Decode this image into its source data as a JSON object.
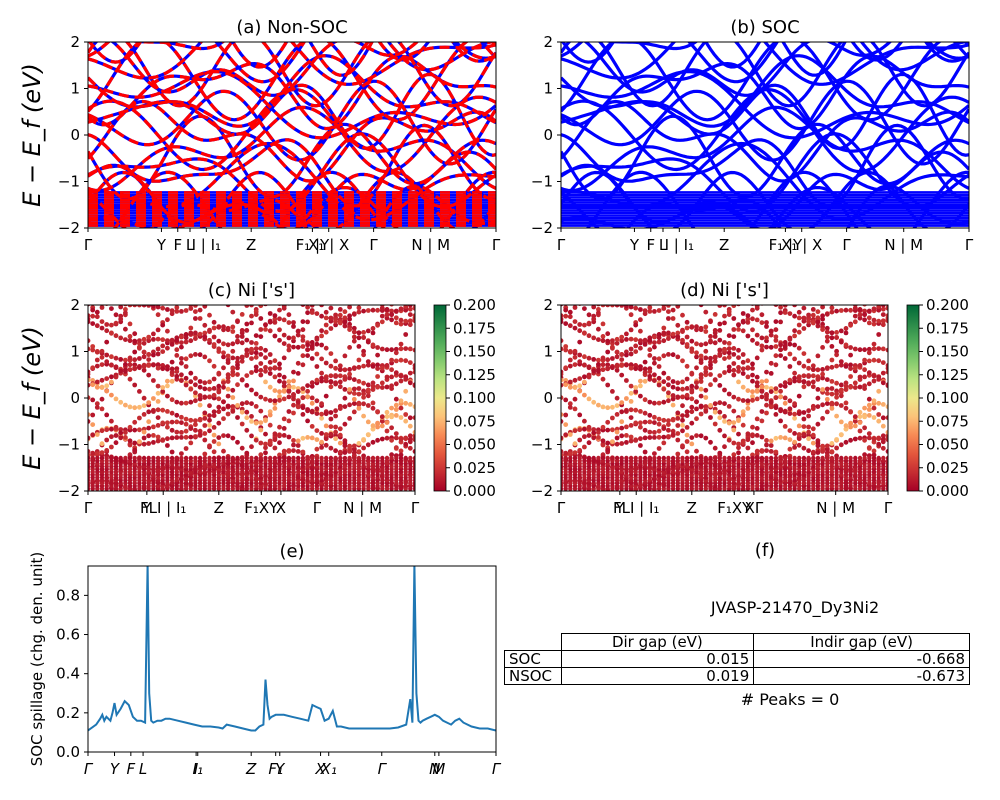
{
  "chart_data": [
    {
      "id": "a",
      "type": "line",
      "title": "(a) Non-SOC",
      "ylabel": "E − E_f (eV)",
      "ylim": [
        -2,
        2
      ],
      "yticks": [
        -2,
        -1,
        0,
        1,
        2
      ],
      "xticks": [
        {
          "pos": 0.0,
          "label": "Γ"
        },
        {
          "pos": 0.18,
          "label": "Y"
        },
        {
          "pos": 0.22,
          "label": "F"
        },
        {
          "pos": 0.25,
          "label": "L"
        },
        {
          "pos": 0.29,
          "label": "I | I₁"
        },
        {
          "pos": 0.4,
          "label": "Z"
        },
        {
          "pos": 0.55,
          "label": "F₁ |Y"
        },
        {
          "pos": 0.59,
          "label": "X₁ | X"
        },
        {
          "pos": 0.7,
          "label": "Γ"
        },
        {
          "pos": 0.84,
          "label": "N | M"
        },
        {
          "pos": 1.0,
          "label": "Γ"
        }
      ],
      "series": [
        {
          "color": "#0000ff",
          "style": "solid"
        },
        {
          "color": "#ff0000",
          "style": "dashed"
        }
      ]
    },
    {
      "id": "b",
      "type": "line",
      "title": "(b) SOC",
      "ylim": [
        -2,
        2
      ],
      "yticks": [
        -2,
        -1,
        0,
        1,
        2
      ],
      "xticks": [
        {
          "pos": 0.0,
          "label": "Γ"
        },
        {
          "pos": 0.18,
          "label": "Y"
        },
        {
          "pos": 0.22,
          "label": "F"
        },
        {
          "pos": 0.25,
          "label": "L"
        },
        {
          "pos": 0.29,
          "label": "I | I₁"
        },
        {
          "pos": 0.4,
          "label": "Z"
        },
        {
          "pos": 0.55,
          "label": "F₁ |Y"
        },
        {
          "pos": 0.59,
          "label": "X₁ | X"
        },
        {
          "pos": 0.7,
          "label": "Γ"
        },
        {
          "pos": 0.84,
          "label": "N | M"
        },
        {
          "pos": 1.0,
          "label": "Γ"
        }
      ],
      "series": [
        {
          "color": "#0000ff",
          "style": "solid"
        }
      ]
    },
    {
      "id": "c",
      "type": "scatter",
      "title": "(c)  Ni ['s']",
      "ylabel": "E − E_f (eV)",
      "ylim": [
        -2,
        2
      ],
      "yticks": [
        -2,
        -1,
        0,
        1,
        2
      ],
      "xticks": [
        {
          "pos": 0.0,
          "label": "Γ"
        },
        {
          "pos": 0.18,
          "label": "Y"
        },
        {
          "pos": 0.23,
          "label": "FLI | I₁"
        },
        {
          "pos": 0.4,
          "label": "Z"
        },
        {
          "pos": 0.53,
          "label": "F₁XY"
        },
        {
          "pos": 0.59,
          "label": "X"
        },
        {
          "pos": 0.7,
          "label": "Γ"
        },
        {
          "pos": 0.84,
          "label": "N | M"
        },
        {
          "pos": 1.0,
          "label": "Γ"
        }
      ],
      "colorbar": {
        "cmap": "RdYlGn",
        "min": 0.0,
        "max": 0.2,
        "ticks": [
          "0.000",
          "0.025",
          "0.050",
          "0.075",
          "0.100",
          "0.125",
          "0.150",
          "0.175",
          "0.200"
        ]
      }
    },
    {
      "id": "d",
      "type": "scatter",
      "title": "(d) Ni ['s']",
      "ylim": [
        -2,
        2
      ],
      "yticks": [
        -2,
        -1,
        0,
        1,
        2
      ],
      "xticks": [
        {
          "pos": 0.0,
          "label": "Γ"
        },
        {
          "pos": 0.18,
          "label": "Y"
        },
        {
          "pos": 0.23,
          "label": "FLI | I₁"
        },
        {
          "pos": 0.4,
          "label": "Z"
        },
        {
          "pos": 0.53,
          "label": "F₁XY"
        },
        {
          "pos": 0.59,
          "label": "XΓ"
        },
        {
          "pos": 0.84,
          "label": "N | M"
        },
        {
          "pos": 1.0,
          "label": "Γ"
        }
      ],
      "colorbar": {
        "cmap": "RdYlGn",
        "min": 0.0,
        "max": 0.2,
        "ticks": [
          "0.000",
          "0.025",
          "0.050",
          "0.075",
          "0.100",
          "0.125",
          "0.150",
          "0.175",
          "0.200"
        ]
      }
    },
    {
      "id": "e",
      "type": "line",
      "title": "(e)",
      "ylabel": "SOC spillage (chg. den. unit)",
      "ylim": [
        0,
        0.95
      ],
      "yticks": [
        0.0,
        0.2,
        0.4,
        0.6,
        0.8
      ],
      "xlim": [
        0,
        100
      ],
      "xticks": [
        {
          "pos": 0,
          "label": "Γ"
        },
        {
          "pos": 6.5,
          "label": "Y"
        },
        {
          "pos": 10.5,
          "label": "F"
        },
        {
          "pos": 13.5,
          "label": "L"
        },
        {
          "pos": 26.5,
          "label": "I"
        },
        {
          "pos": 26.9,
          "label": "I₁"
        },
        {
          "pos": 40,
          "label": "Z"
        },
        {
          "pos": 46,
          "label": "F₁"
        },
        {
          "pos": 47,
          "label": "Y"
        },
        {
          "pos": 57,
          "label": "X"
        },
        {
          "pos": 59,
          "label": "X₁"
        },
        {
          "pos": 72,
          "label": "Γ"
        },
        {
          "pos": 85,
          "label": "N"
        },
        {
          "pos": 86,
          "label": "M"
        },
        {
          "pos": 100,
          "label": "Γ"
        }
      ],
      "series": [
        {
          "color": "#1f77b4",
          "x": [
            0,
            2,
            3,
            3.5,
            4,
            4.5,
            5.5,
            6,
            6.5,
            7,
            8,
            9,
            10,
            11,
            12,
            13,
            14,
            14.6,
            15,
            15.5,
            16,
            17,
            18,
            19,
            20,
            22,
            24,
            26,
            28,
            30,
            32,
            33,
            34,
            36,
            38,
            40,
            40.5,
            41,
            42,
            43,
            43.5,
            44,
            44.5,
            45,
            46,
            47,
            48,
            50,
            52,
            54,
            55,
            56,
            57,
            58,
            59,
            60,
            61,
            62,
            64,
            66,
            68,
            70,
            72,
            74,
            76,
            78,
            79,
            79.5,
            80,
            80.5,
            81,
            81.5,
            82,
            83,
            84,
            85,
            86,
            87,
            88,
            89,
            90,
            91,
            92,
            94,
            96,
            98,
            100
          ],
          "y": [
            0.11,
            0.14,
            0.17,
            0.19,
            0.16,
            0.18,
            0.16,
            0.2,
            0.25,
            0.19,
            0.22,
            0.26,
            0.24,
            0.18,
            0.16,
            0.16,
            0.15,
            0.96,
            0.3,
            0.16,
            0.15,
            0.16,
            0.16,
            0.17,
            0.17,
            0.16,
            0.15,
            0.14,
            0.13,
            0.13,
            0.125,
            0.12,
            0.14,
            0.13,
            0.12,
            0.11,
            0.11,
            0.11,
            0.13,
            0.14,
            0.37,
            0.24,
            0.17,
            0.18,
            0.19,
            0.19,
            0.19,
            0.18,
            0.17,
            0.16,
            0.24,
            0.23,
            0.22,
            0.16,
            0.17,
            0.21,
            0.13,
            0.13,
            0.12,
            0.12,
            0.12,
            0.12,
            0.12,
            0.12,
            0.125,
            0.14,
            0.27,
            0.15,
            0.96,
            0.3,
            0.16,
            0.15,
            0.16,
            0.17,
            0.18,
            0.19,
            0.18,
            0.16,
            0.15,
            0.14,
            0.16,
            0.17,
            0.15,
            0.13,
            0.12,
            0.12,
            0.11
          ]
        }
      ]
    },
    {
      "id": "f",
      "type": "table",
      "title": "(f)",
      "caption": "JVASP-21470_Dy3Ni2",
      "columns": [
        "",
        "Dir gap (eV)",
        "Indir gap (eV)"
      ],
      "rows": [
        {
          "label": "SOC",
          "dir": "0.015",
          "indir": "-0.668"
        },
        {
          "label": "NSOC",
          "dir": "0.019",
          "indir": "-0.673"
        }
      ],
      "footer": "# Peaks = 0"
    }
  ]
}
